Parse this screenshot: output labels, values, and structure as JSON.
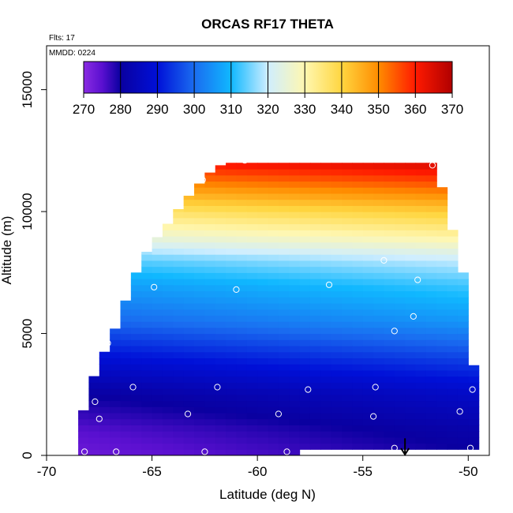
{
  "chart_data": {
    "type": "heatmap",
    "title": "ORCAS RF17 THETA",
    "annotations": {
      "flights": "Flts: 17",
      "date": "MMDD: 0224"
    },
    "xlabel": "Latitude (deg N)",
    "ylabel": "Altitude (m)",
    "xlim": [
      -70,
      -49
    ],
    "ylim": [
      0,
      16800
    ],
    "xticks": [
      -70,
      -65,
      -60,
      -55,
      -50
    ],
    "yticks": [
      0,
      5000,
      10000,
      15000
    ],
    "colorbar": {
      "range": [
        270,
        370
      ],
      "ticks": [
        270,
        280,
        290,
        300,
        310,
        320,
        330,
        340,
        350,
        360,
        370
      ]
    },
    "field_extent": {
      "lat_range": [
        -68.5,
        -49.8
      ],
      "top_boundary": [
        [
          -68.5,
          1000
        ],
        [
          -68,
          2700
        ],
        [
          -67.5,
          3800
        ],
        [
          -67,
          4700
        ],
        [
          -66.5,
          5700
        ],
        [
          -66,
          7000
        ],
        [
          -65.5,
          8000
        ],
        [
          -65,
          8700
        ],
        [
          -64.5,
          9200
        ],
        [
          -64,
          9800
        ],
        [
          -63.5,
          10400
        ],
        [
          -63,
          10900
        ],
        [
          -62.5,
          11400
        ],
        [
          -62,
          11800
        ],
        [
          -61.5,
          12000
        ],
        [
          -60,
          12000
        ],
        [
          -51.5,
          12000
        ],
        [
          -51,
          10000
        ],
        [
          -50.5,
          8500
        ],
        [
          -50,
          6500
        ],
        [
          -49.8,
          3700
        ]
      ],
      "ground_level": 250
    },
    "theta_profile": [
      [
        0,
        276
      ],
      [
        1000,
        278
      ],
      [
        2500,
        283
      ],
      [
        4000,
        292
      ],
      [
        5500,
        302
      ],
      [
        7000,
        309
      ],
      [
        8000,
        316
      ],
      [
        9000,
        328
      ],
      [
        10000,
        338
      ],
      [
        11000,
        350
      ],
      [
        12000,
        362
      ]
    ],
    "sample_points": [
      {
        "lat": -68.2,
        "alt": 150
      },
      {
        "lat": -66.7,
        "alt": 150
      },
      {
        "lat": -62.5,
        "alt": 150
      },
      {
        "lat": -58.6,
        "alt": 150
      },
      {
        "lat": -53.5,
        "alt": 300
      },
      {
        "lat": -49.9,
        "alt": 300
      },
      {
        "lat": -67.7,
        "alt": 2200
      },
      {
        "lat": -67.5,
        "alt": 1500
      },
      {
        "lat": -65.9,
        "alt": 2800
      },
      {
        "lat": -63.3,
        "alt": 1700
      },
      {
        "lat": -61.9,
        "alt": 2800
      },
      {
        "lat": -59,
        "alt": 1700
      },
      {
        "lat": -57.6,
        "alt": 2700
      },
      {
        "lat": -54.5,
        "alt": 1600
      },
      {
        "lat": -54.4,
        "alt": 2800
      },
      {
        "lat": -50.4,
        "alt": 1800
      },
      {
        "lat": -49.8,
        "alt": 2700
      },
      {
        "lat": -67.1,
        "alt": 4600
      },
      {
        "lat": -53.5,
        "alt": 5100
      },
      {
        "lat": -52.6,
        "alt": 5700
      },
      {
        "lat": -66.3,
        "alt": 6700
      },
      {
        "lat": -64.9,
        "alt": 6900
      },
      {
        "lat": -61,
        "alt": 6800
      },
      {
        "lat": -56.6,
        "alt": 7000
      },
      {
        "lat": -52.4,
        "alt": 7200
      },
      {
        "lat": -65.8,
        "alt": 8000
      },
      {
        "lat": -54,
        "alt": 8000
      },
      {
        "lat": -62.6,
        "alt": 11300
      },
      {
        "lat": -60.6,
        "alt": 12100
      },
      {
        "lat": -51.7,
        "alt": 11900
      }
    ],
    "arrow_marker": {
      "lat": -53,
      "alt_from": 700,
      "alt_to": 0
    }
  }
}
